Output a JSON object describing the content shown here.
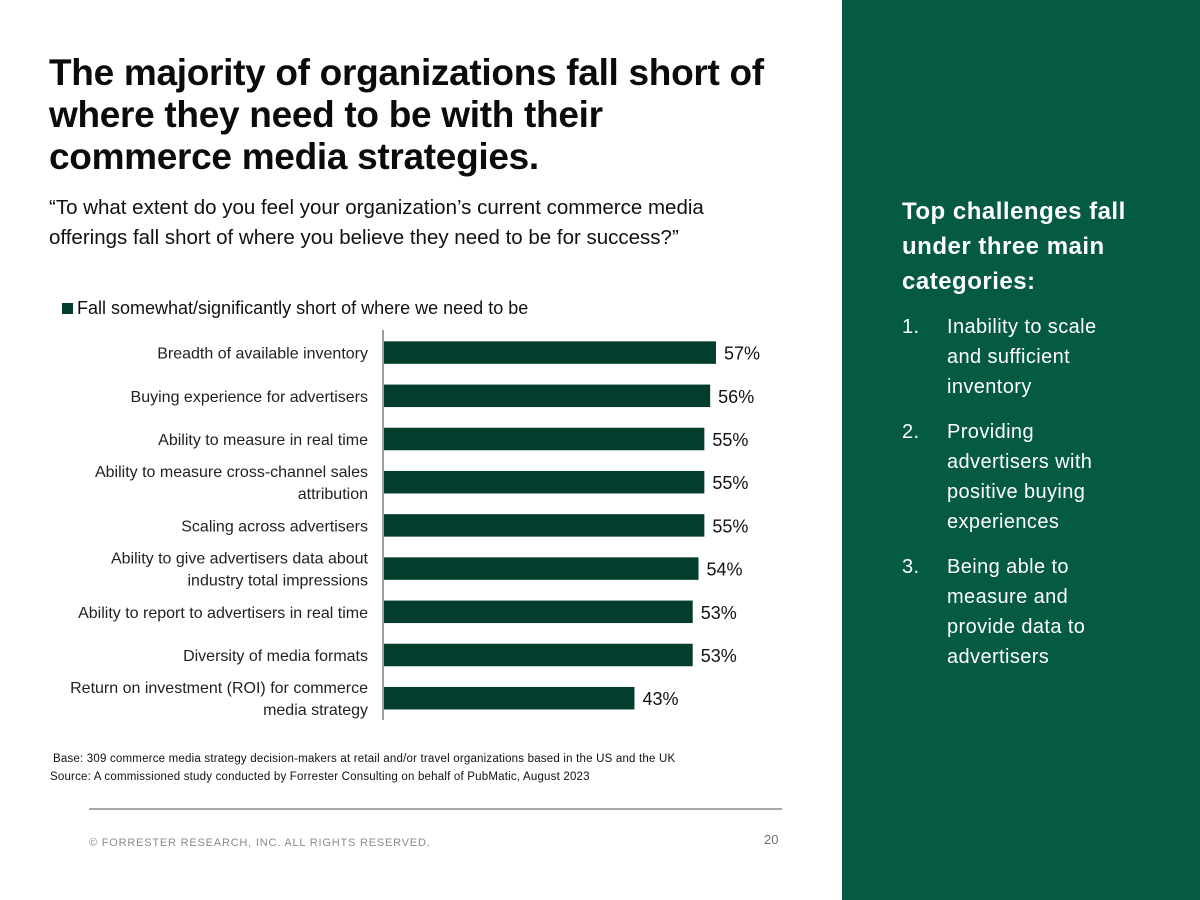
{
  "title": "The majority of organizations fall short of where they need to be with their commerce media strategies.",
  "question": "“To what extent do you feel your organization’s current commerce media offerings fall short of where you believe they need to be for success?”",
  "colors": {
    "bar": "#023d2d",
    "panel": "#045a42",
    "axis": "#7f7f7f"
  },
  "chart_data": {
    "type": "bar",
    "orientation": "horizontal",
    "legend": [
      "Fall somewhat/significantly short of where we need to be"
    ],
    "categories": [
      [
        "Breadth of available inventory"
      ],
      [
        "Buying experience for advertisers"
      ],
      [
        "Ability to measure in real time"
      ],
      [
        "Ability to measure cross-channel sales",
        "attribution"
      ],
      [
        "Scaling across advertisers"
      ],
      [
        "Ability to give advertisers data about",
        "industry total impressions"
      ],
      [
        "Ability to report to advertisers in real time"
      ],
      [
        "Diversity of media formats"
      ],
      [
        "Return on investment (ROI) for commerce",
        "media strategy"
      ]
    ],
    "values": [
      57,
      56,
      55,
      55,
      55,
      54,
      53,
      53,
      43
    ],
    "value_labels": [
      "57%",
      "56%",
      "55%",
      "55%",
      "55%",
      "54%",
      "53%",
      "53%",
      "43%"
    ],
    "xlim": [
      0,
      100
    ],
    "unit": "%"
  },
  "footnotes": {
    "base": "Base: 309 commerce media strategy decision-makers at retail and/or travel organizations based in the US and the UK",
    "source": "Source: A commissioned study conducted by Forrester Consulting on behalf of PubMatic, August 2023"
  },
  "footer": {
    "copyright": "© FORRESTER RESEARCH, INC. ALL RIGHTS RESERVED.",
    "page_number": "20"
  },
  "sidebar": {
    "heading": "Top challenges fall under three main categories:",
    "items": [
      {
        "num": "1.",
        "text": "Inability to scale and sufficient inventory"
      },
      {
        "num": "2.",
        "text": "Providing advertisers with positive buying experiences"
      },
      {
        "num": "3.",
        "text": "Being able to measure and provide data to advertisers"
      }
    ]
  }
}
